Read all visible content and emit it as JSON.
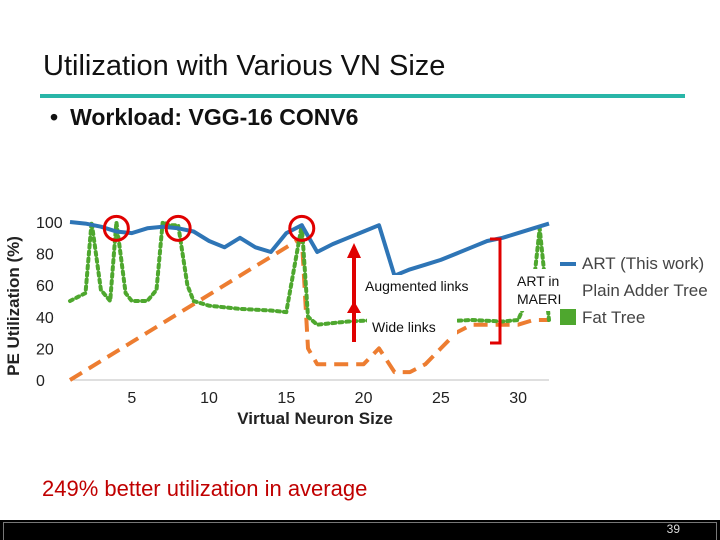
{
  "slide": {
    "title": "Utilization with Various VN Size",
    "bullet": "Workload: VGG-16 CONV6",
    "summary": "249% better utilization in average",
    "page_number": "39",
    "accent_color": "#29b6a8",
    "summary_color": "#c00000"
  },
  "chart_data": {
    "type": "line",
    "title": "",
    "xlabel": "Virtual Neuron Size",
    "ylabel": "PE Utilization (%)",
    "xlim": [
      1,
      32
    ],
    "ylim": [
      0,
      100
    ],
    "xticks": [
      5,
      10,
      15,
      20,
      25,
      30
    ],
    "yticks": [
      0,
      20,
      40,
      60,
      80,
      100
    ],
    "grid": false,
    "legend_position": "right",
    "series": [
      {
        "name": "ART (This work)",
        "color": "#2e75b6",
        "style": "solid",
        "x": [
          1,
          2,
          3,
          4,
          5,
          6,
          7,
          8,
          9,
          10,
          11,
          12,
          13,
          14,
          15,
          16,
          17,
          18,
          19,
          20,
          21,
          22,
          23,
          24,
          25,
          26,
          27,
          28,
          29,
          30,
          31,
          32
        ],
        "values": [
          100,
          99,
          97,
          94,
          93,
          96,
          97,
          96,
          94,
          88,
          84,
          90,
          84,
          81,
          93,
          98,
          81,
          86,
          90,
          94,
          98,
          66,
          70,
          73,
          76,
          80,
          84,
          88,
          90,
          93,
          96,
          99
        ]
      },
      {
        "name": "Plain Adder Tree",
        "color": "#ed7d31",
        "style": "dashed",
        "x": [
          1,
          2,
          3,
          4,
          5,
          6,
          7,
          8,
          9,
          10,
          11,
          12,
          13,
          14,
          15,
          16,
          16.4,
          17,
          18,
          19,
          20,
          21,
          22,
          23,
          24,
          25,
          26,
          27,
          28,
          29,
          30,
          31,
          32
        ],
        "values": [
          0,
          6,
          12,
          18,
          24,
          30,
          36,
          42,
          48,
          54,
          60,
          66,
          72,
          78,
          84,
          90,
          20,
          10,
          10,
          10,
          10,
          20,
          5,
          5,
          10,
          20,
          30,
          35,
          35,
          35,
          35,
          38,
          38
        ]
      },
      {
        "name": "Fat Tree",
        "color": "#4ea72e",
        "style": "dotted",
        "x": [
          1,
          2,
          2.4,
          3,
          3.6,
          4,
          4.6,
          5,
          6,
          6.6,
          7,
          7.4,
          8,
          8.6,
          9,
          10,
          12,
          14,
          15,
          16,
          16.4,
          17,
          19,
          21,
          23,
          25,
          27,
          29,
          30,
          31,
          31.4,
          32
        ],
        "values": [
          50,
          55,
          100,
          57,
          50,
          100,
          55,
          50,
          50,
          57,
          100,
          98,
          98,
          60,
          50,
          47,
          45,
          44,
          43,
          98,
          40,
          35,
          37,
          38,
          38,
          37,
          38,
          37,
          38,
          60,
          96,
          38
        ]
      }
    ],
    "annotations": [
      {
        "text": "Augmented links",
        "type": "label"
      },
      {
        "text": "Wide links",
        "type": "label"
      },
      {
        "text": "ART in",
        "type": "label"
      },
      {
        "text": "MAERI",
        "type": "label"
      }
    ],
    "circle_markers_x": [
      4,
      8,
      16
    ],
    "annotation_color": "#e00000"
  }
}
